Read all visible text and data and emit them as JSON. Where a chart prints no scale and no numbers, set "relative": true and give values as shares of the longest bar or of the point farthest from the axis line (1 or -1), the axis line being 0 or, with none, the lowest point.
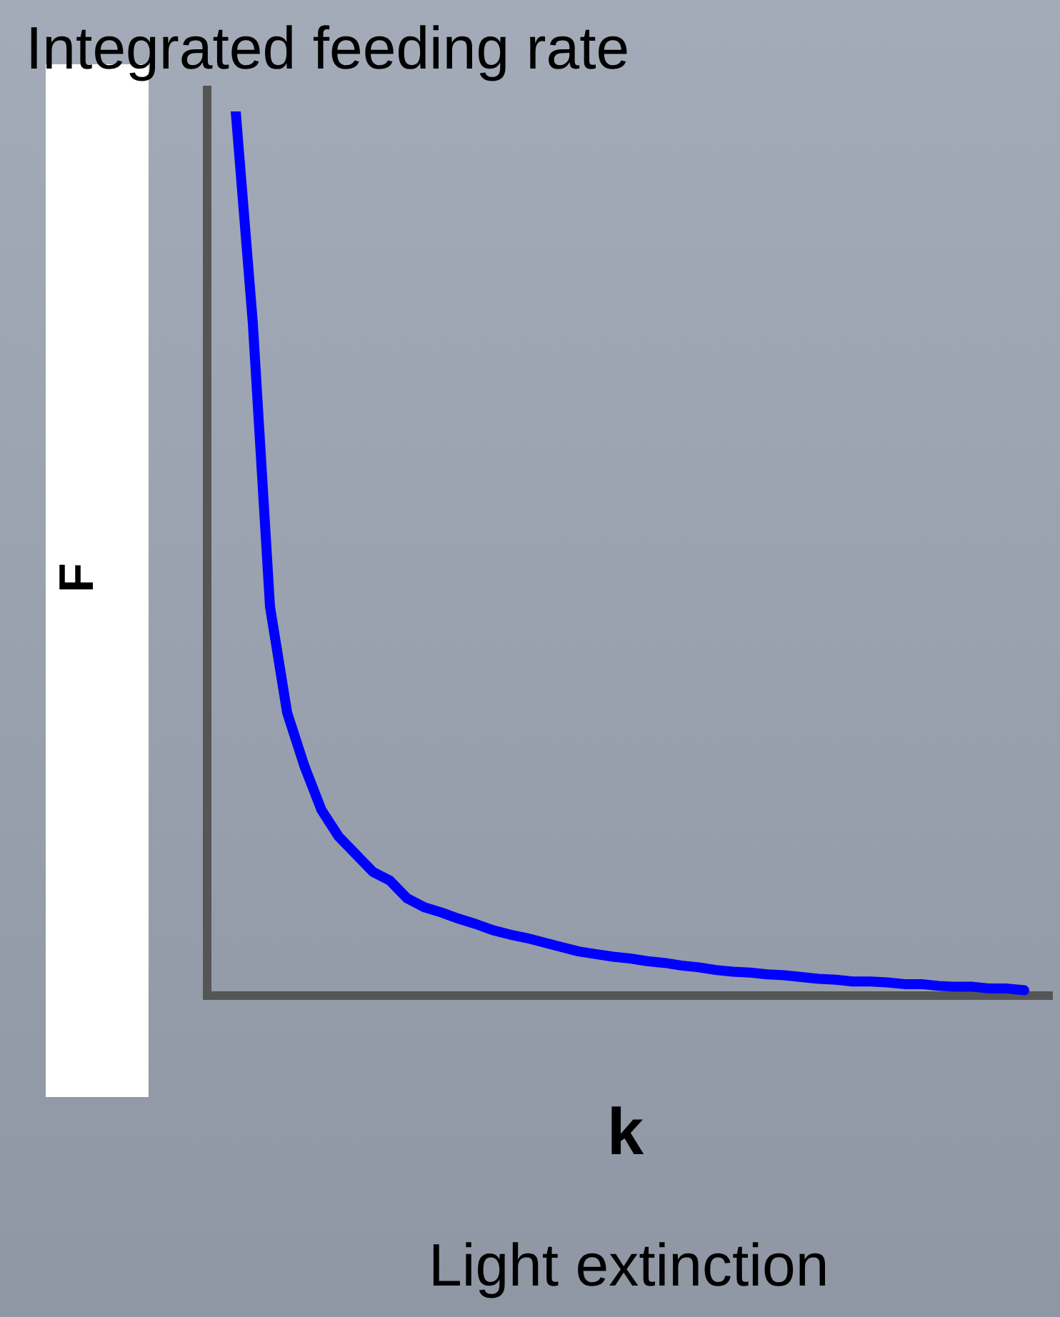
{
  "chart_data": {
    "type": "line",
    "title": "Integrated feeding rate",
    "ylabel": "F",
    "xlabel": "k",
    "annotations": [
      "Light extinction"
    ],
    "relative": true,
    "legend": false,
    "marker": "none",
    "line_style": "solid",
    "categories": [
      null,
      null,
      null,
      null,
      null,
      null,
      null,
      null,
      null,
      null,
      null,
      null,
      null,
      null,
      null,
      null,
      null,
      null,
      null,
      null,
      null,
      null,
      null,
      null,
      null,
      null,
      null,
      null,
      null,
      null,
      null,
      null,
      null,
      null,
      null,
      null,
      null,
      null,
      null,
      null,
      null,
      null,
      null,
      null,
      null,
      null,
      null
    ],
    "series": [
      {
        "color": "#0000ff",
        "values": [
          1,
          0.76,
          0.44,
          0.32,
          0.26,
          0.21,
          0.18,
          0.16,
          0.14,
          0.13,
          0.11,
          0.1,
          0.094,
          0.087,
          0.081,
          0.074,
          0.069,
          0.065,
          0.06,
          0.055,
          0.05,
          0.047,
          0.044,
          0.042,
          0.039,
          0.037,
          0.034,
          0.032,
          0.029,
          0.027,
          0.026,
          0.024,
          0.023,
          0.021,
          0.019,
          0.018,
          0.016,
          0.016,
          0.015,
          0.013,
          0.013,
          0.011,
          0.01,
          0.01,
          0.008,
          0.008,
          0.006
        ]
      }
    ]
  }
}
